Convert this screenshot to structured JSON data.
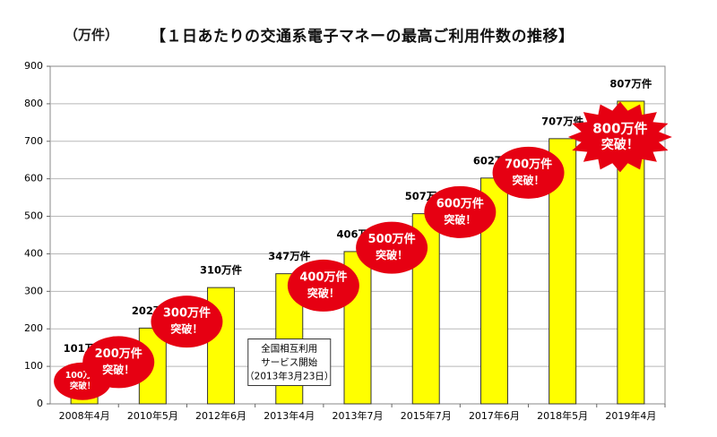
{
  "chart_data": {
    "type": "bar",
    "title": "【１日あたりの交通系電子マネーの最高ご利用件数の推移】",
    "unit_label": "（万件）",
    "ylim": [
      0,
      900
    ],
    "yticks": [
      0,
      100,
      200,
      300,
      400,
      500,
      600,
      700,
      800,
      900
    ],
    "grid": true,
    "categories": [
      "2008年4月",
      "2010年5月",
      "2012年6月",
      "2013年4月",
      "2013年7月",
      "2015年7月",
      "2017年6月",
      "2018年5月",
      "2019年4月"
    ],
    "values": [
      101,
      202,
      310,
      347,
      406,
      507,
      602,
      707,
      807
    ],
    "value_labels": [
      "101万件",
      "202万件",
      "310万件",
      "347万件",
      "406万件",
      "507万件",
      "602万件",
      "707万件",
      "807万件"
    ],
    "bar_color": "#FFFF00",
    "badge_color": "#E60012",
    "badges": [
      {
        "bar": 0,
        "line1": "100万件",
        "line2": "突破！",
        "shape": "ellipse"
      },
      {
        "bar": 1,
        "line1": "200万件",
        "line2": "突破！",
        "shape": "ellipse"
      },
      {
        "bar": 2,
        "line1": "300万件",
        "line2": "突破！",
        "shape": "ellipse"
      },
      {
        "bar": 4,
        "line1": "400万件",
        "line2": "突破！",
        "shape": "ellipse"
      },
      {
        "bar": 5,
        "line1": "500万件",
        "line2": "突破！",
        "shape": "ellipse"
      },
      {
        "bar": 6,
        "line1": "600万件",
        "line2": "突破！",
        "shape": "ellipse"
      },
      {
        "bar": 7,
        "line1": "700万件",
        "line2": "突破！",
        "shape": "ellipse"
      },
      {
        "bar": 8,
        "line1": "800万件",
        "line2": "突破！",
        "shape": "burst"
      }
    ],
    "annotation": {
      "bar": 3,
      "lines": [
        "全国相互利用",
        "サービス開始",
        "（2013年3月23日）"
      ]
    }
  }
}
